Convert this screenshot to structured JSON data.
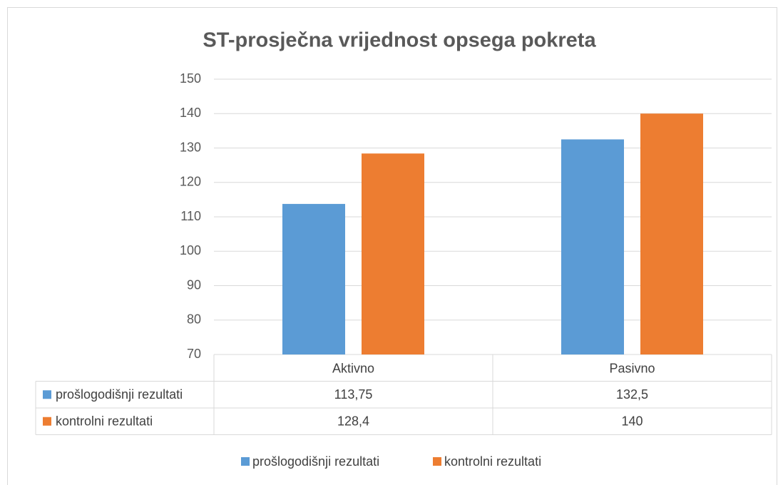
{
  "chart_data": {
    "type": "bar",
    "title": "ST-prosječna vrijednost opsega pokreta",
    "categories": [
      "Aktivno",
      "Pasivno"
    ],
    "series": [
      {
        "name": "prošlogodišnji rezultati",
        "color": "#5b9bd5",
        "values": [
          113.75,
          132.5
        ],
        "value_labels": [
          "113,75",
          "132,5"
        ]
      },
      {
        "name": "kontrolni rezultati",
        "color": "#ed7d31",
        "values": [
          128.4,
          140
        ],
        "value_labels": [
          "128,4",
          "140"
        ]
      }
    ],
    "ylim": [
      70,
      150
    ],
    "yticks": [
      70,
      80,
      90,
      100,
      110,
      120,
      130,
      140,
      150
    ],
    "grid": true,
    "legend": "bottom",
    "data_table": true
  }
}
